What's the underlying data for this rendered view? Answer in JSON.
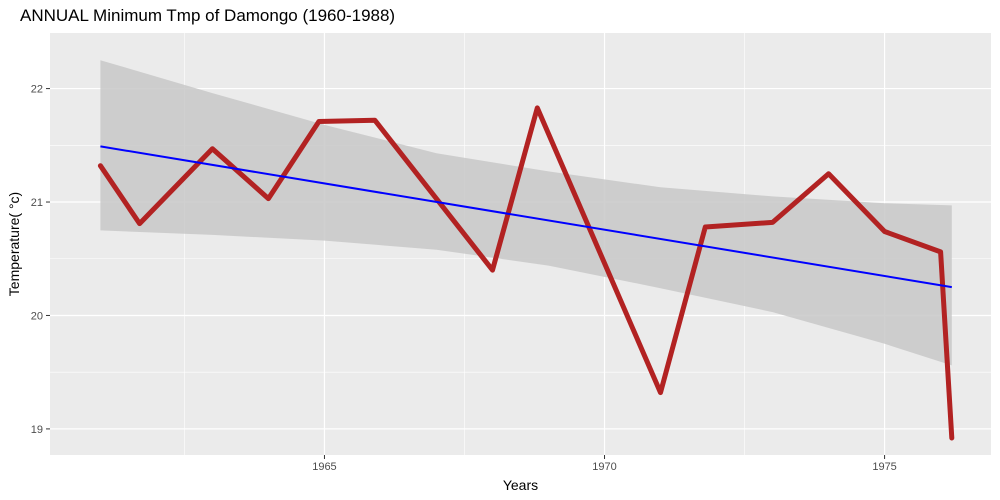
{
  "chart_data": {
    "type": "line",
    "title": "ANNUAL Minimum Tmp of Damongo (1960-1988)",
    "xlabel": "Years",
    "ylabel": "Temperature( °c)",
    "xlim": [
      1960.1,
      1976.9
    ],
    "ylim": [
      18.77,
      22.49
    ],
    "x_ticks": [
      1965,
      1970,
      1975
    ],
    "x_tick_labels": [
      "1965",
      "1970",
      "1975"
    ],
    "y_ticks": [
      19,
      20,
      21,
      22
    ],
    "y_tick_labels": [
      "19",
      "20",
      "21",
      "22"
    ],
    "grid": true,
    "legend": "none",
    "series": [
      {
        "x": [
          1961.0,
          1961.7,
          1963.0,
          1964.0,
          1964.9,
          1965.9,
          1968.0,
          1968.8,
          1971.0,
          1971.8,
          1973.0,
          1974.0,
          1975.0,
          1976.0,
          1976.2
        ],
        "values": [
          21.32,
          20.81,
          21.47,
          21.03,
          21.71,
          21.72,
          20.4,
          21.83,
          19.32,
          20.78,
          20.82,
          21.25,
          20.74,
          20.56,
          18.92
        ]
      }
    ],
    "trend": {
      "x": [
        1961.0,
        1976.2
      ],
      "values": [
        21.49,
        20.25
      ]
    },
    "confidence_band": {
      "x": [
        1961.0,
        1963.0,
        1965.0,
        1967.0,
        1969.0,
        1971.0,
        1973.0,
        1975.0,
        1976.2
      ],
      "lower": [
        20.75,
        20.71,
        20.66,
        20.58,
        20.44,
        20.24,
        20.03,
        19.75,
        19.56
      ],
      "upper": [
        22.25,
        21.96,
        21.68,
        21.43,
        21.27,
        21.13,
        21.05,
        20.99,
        20.97
      ]
    },
    "colors": {
      "line": "#b22222",
      "trend": "#0000ff",
      "band": "#c8c8c8",
      "panel": "#ebebeb",
      "grid": "#ffffff"
    }
  }
}
